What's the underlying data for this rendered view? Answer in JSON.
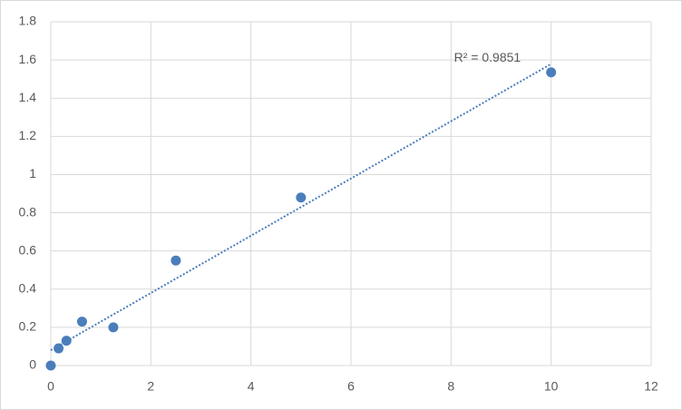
{
  "chart_data": {
    "type": "scatter",
    "x": [
      0,
      0.156,
      0.3125,
      0.625,
      1.25,
      2.5,
      5,
      10
    ],
    "values": [
      0,
      0.09,
      0.13,
      0.23,
      0.2,
      0.55,
      0.88,
      1.535
    ],
    "color": "#4a7ebb",
    "trendline": "linear",
    "annotation": "R² = 0.9851",
    "xlim": [
      0,
      12
    ],
    "xticks": [
      0,
      2,
      4,
      6,
      8,
      10,
      12
    ],
    "ylim": [
      0,
      1.8
    ],
    "yticks": [
      0,
      0.2,
      0.4,
      0.6,
      0.8,
      1,
      1.2,
      1.4,
      1.6,
      1.8
    ],
    "grid": true
  }
}
